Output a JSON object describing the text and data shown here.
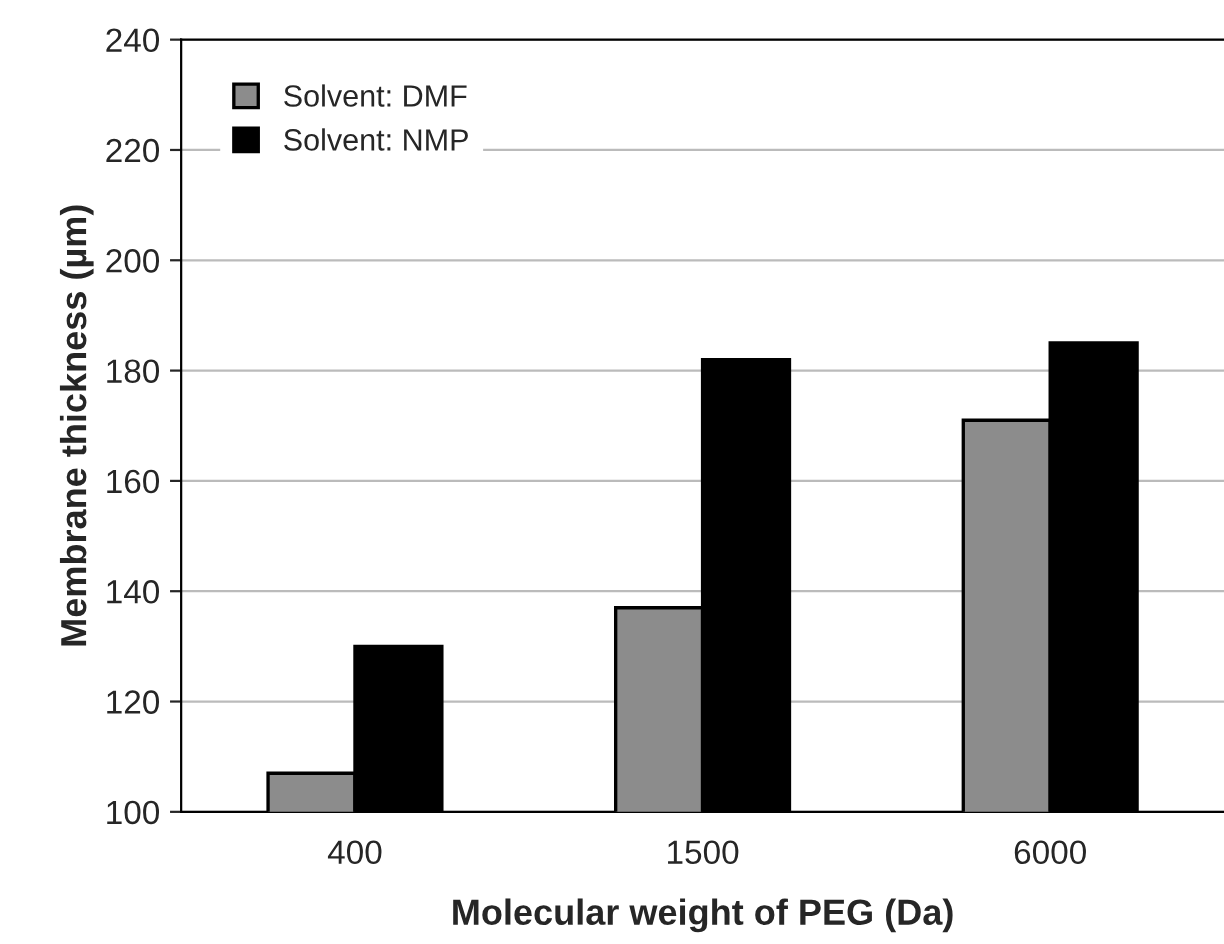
{
  "chart_data": {
    "type": "bar",
    "xlabel": "Molecular weight of PEG (Da)",
    "ylabel": "Membrane thickness (µm)",
    "categories": [
      "400",
      "1500",
      "6000"
    ],
    "series": [
      {
        "name": "Solvent: DMF",
        "color": "#8c8c8c",
        "values": [
          107,
          137,
          171
        ]
      },
      {
        "name": "Solvent: NMP",
        "color": "#000000",
        "values": [
          130,
          182,
          185
        ]
      }
    ],
    "ylim": [
      100,
      240
    ],
    "yticks": [
      100,
      120,
      140,
      160,
      180,
      200,
      220,
      240
    ],
    "grid": "y",
    "legend": "top left"
  }
}
